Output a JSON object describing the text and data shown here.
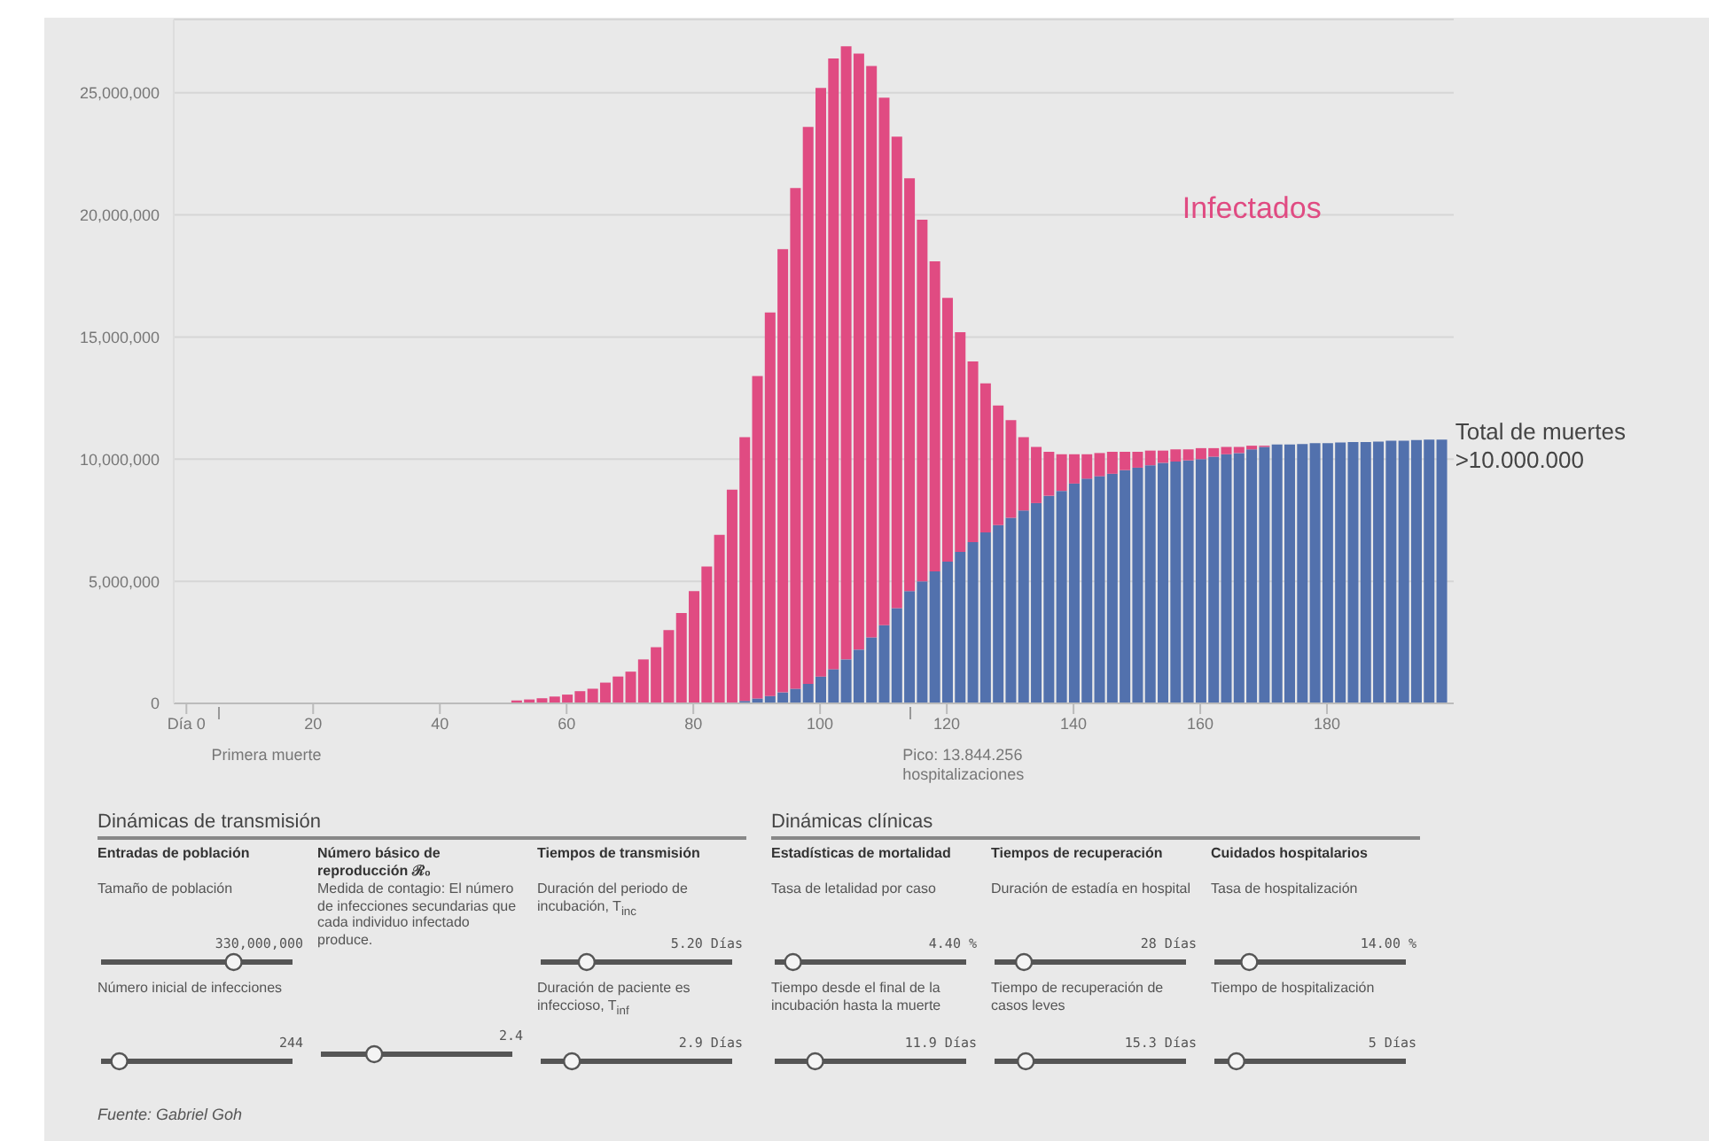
{
  "chart_data": {
    "type": "bar",
    "stacked": true,
    "x": [
      40,
      42,
      44,
      46,
      48,
      50,
      52,
      54,
      56,
      58,
      60,
      62,
      64,
      66,
      68,
      70,
      72,
      74,
      76,
      78,
      80,
      82,
      84,
      86,
      88,
      90,
      92,
      94,
      96,
      98,
      100,
      102,
      104,
      106,
      108,
      110,
      112,
      114,
      116,
      118,
      120,
      122,
      124,
      126,
      128,
      130,
      132,
      134,
      136,
      138,
      140,
      142,
      144,
      146,
      148,
      150,
      152,
      154,
      156,
      158,
      160,
      162,
      164,
      166,
      168,
      170,
      172,
      174,
      176,
      178,
      180,
      182,
      184,
      186,
      188,
      190,
      192,
      194,
      196,
      198
    ],
    "series": [
      {
        "name": "Total de muertes >10.000.000",
        "color": "#5271ad",
        "values": [
          0,
          0,
          0,
          0,
          0,
          0,
          0,
          0,
          0,
          0,
          0,
          0,
          0,
          0,
          0,
          0,
          0,
          0,
          0,
          0,
          0,
          0,
          0,
          null,
          100000,
          200000,
          300000,
          450000,
          600000,
          800000,
          1100000,
          1400000,
          1800000,
          2200000,
          2700000,
          3200000,
          3900000,
          4600000,
          5000000,
          5400000,
          5800000,
          6200000,
          6600000,
          7000000,
          7300000,
          7600000,
          7900000,
          8200000,
          8500000,
          8700000,
          9000000,
          9200000,
          9300000,
          9400000,
          9550000,
          9650000,
          9750000,
          9850000,
          9900000,
          9950000,
          10000000,
          10100000,
          10200000,
          10250000,
          10400000,
          10500000,
          10600000,
          10600000,
          10620000,
          10650000,
          10650000,
          10680000,
          10700000,
          10700000,
          10720000,
          10750000,
          10750000,
          10780000,
          10800000,
          10800000
        ]
      },
      {
        "name": "Infectados",
        "color": "#e04b82",
        "values": [
          null,
          null,
          null,
          null,
          null,
          null,
          120000,
          160000,
          210000,
          280000,
          360000,
          500000,
          600000,
          850000,
          1100000,
          1300000,
          1800000,
          2300000,
          3000000,
          3700000,
          4600000,
          5600000,
          6900000,
          8750000,
          10800000,
          13200000,
          15700000,
          18150000,
          20500000,
          22800000,
          24100000,
          25000000,
          25100000,
          24400000,
          23400000,
          21600000,
          19300000,
          16900000,
          14800000,
          12700000,
          10800000,
          9000000,
          7400000,
          6100000,
          4900000,
          4000000,
          3000000,
          2300000,
          1800000,
          1500000,
          1200000,
          1000000,
          950000,
          900000,
          750000,
          650000,
          600000,
          500000,
          500000,
          450000,
          450000,
          350000,
          300000,
          250000,
          150000,
          50000,
          0,
          0,
          0,
          0,
          0,
          0,
          0,
          0,
          0,
          0,
          0,
          0,
          0,
          0
        ]
      }
    ],
    "xlim": [
      -2,
      200
    ],
    "xticks": [
      {
        "value": 0,
        "label": "Día 0"
      },
      20,
      40,
      60,
      80,
      100,
      120,
      140,
      160,
      180
    ],
    "ylim": [
      0,
      28000000
    ],
    "yticks": [
      {
        "value": 0,
        "label": "0"
      },
      {
        "value": 5000000,
        "label": "5,000,000"
      },
      {
        "value": 10000000,
        "label": "10,000,000"
      },
      {
        "value": 15000000,
        "label": "15,000,000"
      },
      {
        "value": 20000000,
        "label": "20,000,000"
      },
      {
        "value": 25000000,
        "label": "25,000,000"
      }
    ],
    "grid": "y",
    "annotations": [
      "Primera muerte",
      "Pico: 13.844.256 hospitalizaciones",
      "Dinámicas de transmisión",
      "Entradas de población",
      "Tamaño de población",
      "330,000,000",
      "Número inicial de infecciones",
      "244",
      "Número básico de reproducción ℛ₀",
      "Medida de contagio: El número de infecciones secundarias que cada individuo infectado produce.",
      "2.4",
      "Tiempos de transmisión",
      "Duración del periodo de incubación, T$_{inc}$",
      "5.20 Días",
      "Duración de paciente es infeccioso, T$_{inf}$",
      "2.9 Días",
      "Dinámicas clínicas",
      "Estadísticas de mortalidad",
      "Tasa de letalidad por caso",
      "4.40 %",
      "Tiempo desde el final de la incubación hasta la muerte",
      "11.9 Días",
      "Tiempos de recuperación",
      "Duración de estadía en hospital",
      "28 Días",
      "Tiempo de recuperación de casos leves",
      "15.3 Días",
      "Cuidados hospitalarios",
      "Tasa de hospitalización",
      "14.00 %",
      "Tiempo de hospitalización",
      "5 Días",
      "Fuente: Gabriel Goh"
    ]
  }
}
